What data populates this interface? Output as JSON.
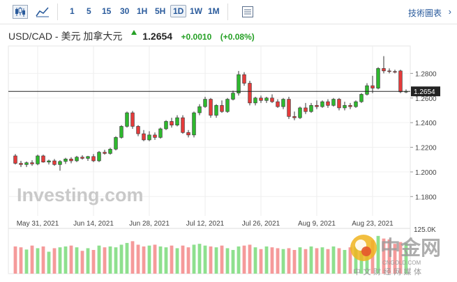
{
  "toolbar": {
    "chart_icons": [
      "candlestick-icon",
      "area-chart-icon"
    ],
    "periods": [
      "1",
      "5",
      "15",
      "30",
      "1H",
      "5H",
      "1D",
      "1W",
      "1M"
    ],
    "active_period": "1D",
    "settings_icon": "settings-icon",
    "tech_chart_label": "技術圖表",
    "tech_chart_icon": "chevron-right-icon"
  },
  "header": {
    "pair": "USD/CAD - 美元 加拿大元",
    "price": "1.2654",
    "change": "+0.0010",
    "change_pct": "(+0.08%)"
  },
  "watermark": "Investing.com",
  "logo": {
    "name": "中金网",
    "url": "CNGOLD.COM",
    "tagline": "中 文 财 经 网 媒 体"
  },
  "chart_data": {
    "type": "candlestick",
    "y_ticks": [
      "1.2800",
      "1.2600",
      "1.2400",
      "1.2200",
      "1.2000",
      "1.1800"
    ],
    "ylim": [
      1.17,
      1.3
    ],
    "x_ticks": [
      "May 31, 2021",
      "Jun 14, 2021",
      "Jun 28, 2021",
      "Jul 12, 2021",
      "Jul 26, 2021",
      "Aug 9, 2021",
      "Aug 23, 2021"
    ],
    "last_price": 1.2654,
    "last_price_label": "1.2654",
    "volume_axis_label": "125.0K",
    "colors": {
      "up": "#2eb82e",
      "down": "#e43b3b",
      "up_vol": "#8ee08e",
      "down_vol": "#f59a9a"
    },
    "candles": [
      [
        1.213,
        1.2145,
        1.206,
        1.207
      ],
      [
        1.207,
        1.209,
        1.204,
        1.206
      ],
      [
        1.206,
        1.2085,
        1.204,
        1.2075
      ],
      [
        1.2075,
        1.2095,
        1.205,
        1.2065
      ],
      [
        1.2065,
        1.214,
        1.2055,
        1.213
      ],
      [
        1.213,
        1.214,
        1.2075,
        1.208
      ],
      [
        1.208,
        1.21,
        1.206,
        1.209
      ],
      [
        1.209,
        1.2105,
        1.205,
        1.206
      ],
      [
        1.206,
        1.2095,
        1.201,
        1.2085
      ],
      [
        1.2085,
        1.2115,
        1.2065,
        1.2105
      ],
      [
        1.2105,
        1.212,
        1.207,
        1.209
      ],
      [
        1.209,
        1.213,
        1.208,
        1.212
      ],
      [
        1.212,
        1.2135,
        1.21,
        1.211
      ],
      [
        1.211,
        1.213,
        1.209,
        1.2125
      ],
      [
        1.2125,
        1.2145,
        1.208,
        1.209
      ],
      [
        1.209,
        1.217,
        1.208,
        1.216
      ],
      [
        1.216,
        1.218,
        1.214,
        1.215
      ],
      [
        1.215,
        1.2195,
        1.214,
        1.2185
      ],
      [
        1.2185,
        1.229,
        1.2175,
        1.228
      ],
      [
        1.228,
        1.238,
        1.227,
        1.237
      ],
      [
        1.237,
        1.249,
        1.236,
        1.248
      ],
      [
        1.248,
        1.2495,
        1.235,
        1.237
      ],
      [
        1.237,
        1.238,
        1.229,
        1.231
      ],
      [
        1.231,
        1.234,
        1.225,
        1.226
      ],
      [
        1.226,
        1.233,
        1.225,
        1.23
      ],
      [
        1.23,
        1.232,
        1.226,
        1.228
      ],
      [
        1.228,
        1.236,
        1.227,
        1.235
      ],
      [
        1.235,
        1.242,
        1.234,
        1.241
      ],
      [
        1.241,
        1.244,
        1.236,
        1.238
      ],
      [
        1.238,
        1.246,
        1.237,
        1.244
      ],
      [
        1.244,
        1.246,
        1.231,
        1.232
      ],
      [
        1.232,
        1.234,
        1.228,
        1.23
      ],
      [
        1.23,
        1.249,
        1.228,
        1.248
      ],
      [
        1.248,
        1.255,
        1.246,
        1.253
      ],
      [
        1.253,
        1.261,
        1.252,
        1.259
      ],
      [
        1.259,
        1.26,
        1.244,
        1.246
      ],
      [
        1.246,
        1.255,
        1.244,
        1.254
      ],
      [
        1.254,
        1.258,
        1.248,
        1.249
      ],
      [
        1.249,
        1.26,
        1.248,
        1.259
      ],
      [
        1.259,
        1.266,
        1.258,
        1.264
      ],
      [
        1.264,
        1.282,
        1.262,
        1.279
      ],
      [
        1.279,
        1.281,
        1.27,
        1.272
      ],
      [
        1.272,
        1.274,
        1.254,
        1.256
      ],
      [
        1.256,
        1.261,
        1.254,
        1.26
      ],
      [
        1.26,
        1.262,
        1.256,
        1.258
      ],
      [
        1.258,
        1.261,
        1.256,
        1.26
      ],
      [
        1.26,
        1.263,
        1.256,
        1.257
      ],
      [
        1.257,
        1.259,
        1.252,
        1.253
      ],
      [
        1.253,
        1.26,
        1.251,
        1.259
      ],
      [
        1.259,
        1.261,
        1.243,
        1.245
      ],
      [
        1.245,
        1.249,
        1.242,
        1.244
      ],
      [
        1.244,
        1.253,
        1.243,
        1.252
      ],
      [
        1.252,
        1.256,
        1.247,
        1.249
      ],
      [
        1.249,
        1.256,
        1.248,
        1.254
      ],
      [
        1.254,
        1.258,
        1.251,
        1.253
      ],
      [
        1.253,
        1.258,
        1.252,
        1.257
      ],
      [
        1.257,
        1.259,
        1.252,
        1.254
      ],
      [
        1.254,
        1.26,
        1.253,
        1.259
      ],
      [
        1.259,
        1.26,
        1.25,
        1.252
      ],
      [
        1.252,
        1.257,
        1.25,
        1.254
      ],
      [
        1.254,
        1.256,
        1.251,
        1.253
      ],
      [
        1.253,
        1.258,
        1.252,
        1.257
      ],
      [
        1.257,
        1.264,
        1.256,
        1.263
      ],
      [
        1.263,
        1.272,
        1.262,
        1.27
      ],
      [
        1.27,
        1.278,
        1.264,
        1.268
      ],
      [
        1.268,
        1.285,
        1.267,
        1.284
      ],
      [
        1.284,
        1.294,
        1.28,
        1.282
      ],
      [
        1.282,
        1.284,
        1.28,
        1.2815
      ],
      [
        1.2815,
        1.283,
        1.28,
        1.281
      ],
      [
        1.282,
        1.283,
        1.264,
        1.265
      ],
      [
        1.265,
        1.267,
        1.264,
        1.2654
      ]
    ],
    "volumes": [
      62,
      60,
      55,
      64,
      58,
      62,
      50,
      58,
      60,
      62,
      64,
      60,
      52,
      58,
      54,
      64,
      60,
      62,
      60,
      66,
      70,
      74,
      66,
      62,
      64,
      66,
      62,
      60,
      64,
      58,
      64,
      60,
      66,
      68,
      64,
      62,
      60,
      64,
      58,
      54,
      62,
      64,
      66,
      60,
      56,
      62,
      60,
      58,
      56,
      58,
      54,
      60,
      56,
      62,
      58,
      60,
      56,
      62,
      58,
      54,
      60,
      62,
      64,
      56,
      76,
      86,
      80,
      78,
      68,
      72,
      70
    ]
  }
}
